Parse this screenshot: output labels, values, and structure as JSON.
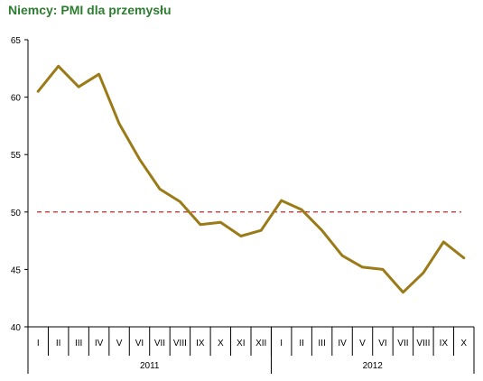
{
  "chart_data": {
    "type": "line",
    "title": "Niemcy: PMI dla przemysłu",
    "xlabel": "",
    "ylabel": "",
    "ylim": [
      40,
      65
    ],
    "yticks": [
      40,
      45,
      50,
      55,
      60,
      65
    ],
    "reference_line": {
      "value": 50,
      "style": "dashed",
      "color": "#c0504d"
    },
    "x": [
      "I",
      "II",
      "III",
      "IV",
      "V",
      "VI",
      "VII",
      "VIII",
      "IX",
      "X",
      "XI",
      "XII",
      "I",
      "II",
      "III",
      "IV",
      "V",
      "VI",
      "VII",
      "VIII",
      "IX",
      "X"
    ],
    "years": [
      {
        "label": "2011",
        "start": 0,
        "end": 11
      },
      {
        "label": "2012",
        "start": 12,
        "end": 21
      }
    ],
    "series": [
      {
        "name": "",
        "color": "#9a7b18",
        "values": [
          60.5,
          62.7,
          60.9,
          62.0,
          57.7,
          54.6,
          52.0,
          50.9,
          48.9,
          49.1,
          47.9,
          48.4,
          51.0,
          50.2,
          48.4,
          46.2,
          45.2,
          45.0,
          43.0,
          44.7,
          47.4,
          46.0
        ]
      }
    ],
    "grid": false,
    "legend": "none"
  }
}
